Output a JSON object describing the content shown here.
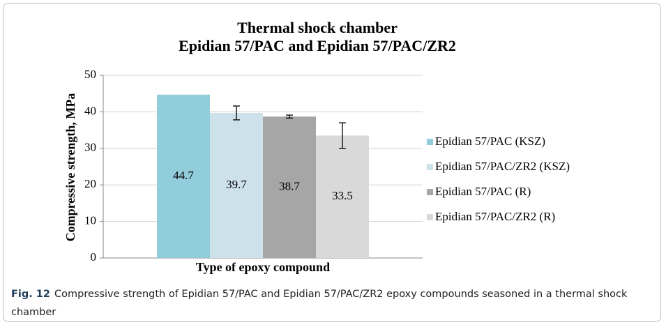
{
  "chart_data": {
    "type": "bar",
    "title": "Thermal shock chamber",
    "subtitle": "Epidian 57/PAC and Epidian 57/PAC/ZR2",
    "ylabel": "Compressive strength, MPa",
    "xlabel": "Type of epoxy compound",
    "categories": [
      null
    ],
    "series": [
      {
        "name": "Epidian 57/PAC (KSZ)",
        "color": "#92cddc",
        "values": [
          44.7
        ]
      },
      {
        "name": "Epidian 57/PAC/ZR2 (KSZ)",
        "color": "#cde1ea",
        "values": [
          39.7
        ],
        "errors": [
          1.9
        ]
      },
      {
        "name": "Epidian 57/PAC (R)",
        "color": "#a6a6a6",
        "values": [
          38.7
        ],
        "errors": [
          0.4
        ]
      },
      {
        "name": "Epidian 57/PAC/ZR2 (R)",
        "color": "#d9d9d9",
        "values": [
          33.5
        ],
        "errors": [
          3.5
        ]
      }
    ],
    "ylim": [
      0,
      50
    ],
    "yticks": [
      0,
      10,
      20,
      30,
      40,
      50
    ],
    "grid": true,
    "legend": "right"
  },
  "caption": {
    "label": "Fig. 12",
    "text": "Compressive strength of Epidian 57/PAC and Epidian 57/PAC/ZR2 epoxy compounds seasoned in a thermal shock chamber"
  }
}
